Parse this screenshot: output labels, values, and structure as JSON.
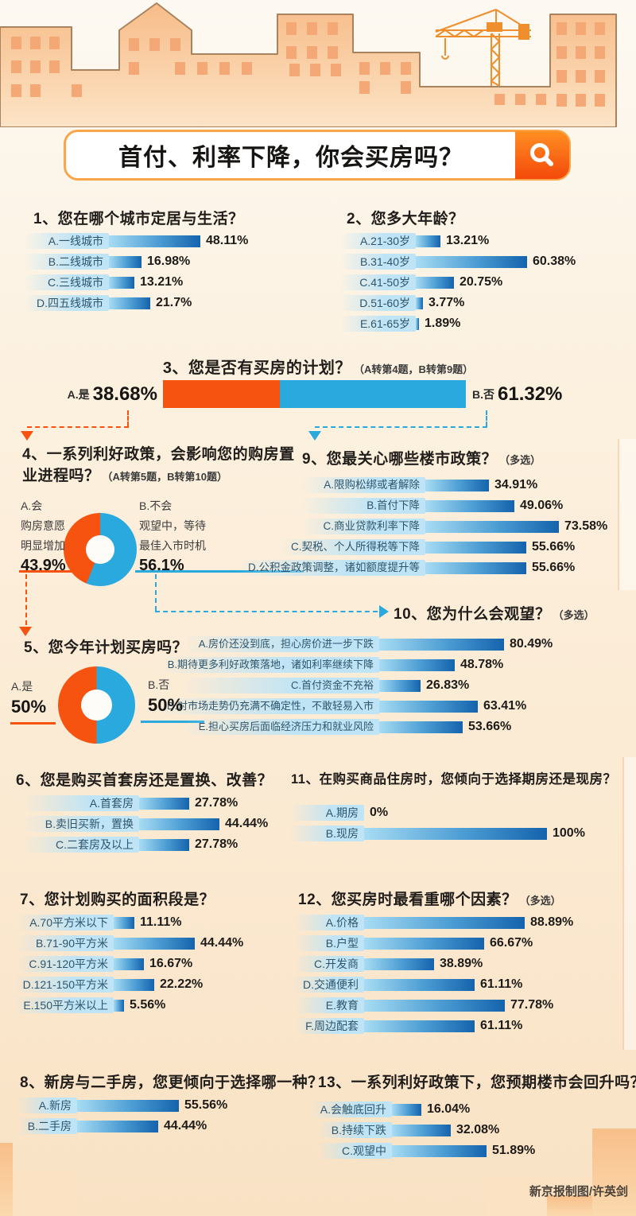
{
  "header": {
    "title": "首付、利率下降，你会买房吗？",
    "search_icon": "magnifier"
  },
  "footer": {
    "credit": "新京报制图/许英剑"
  },
  "colors": {
    "orange": "#f65310",
    "blue": "#29a9de",
    "bar_start": "#a7dcf3",
    "bar_mid": "#4b9cd3",
    "bar_end": "#1463ad",
    "label_bg": "#bee4f6",
    "building": "#f7bc88",
    "building_line": "#aa835e",
    "window": "#f3a876",
    "crane": "#ef8e2d"
  },
  "chart_data": [
    {
      "id": "q1",
      "type": "bar",
      "number": "1",
      "title": "您在哪个城市定居与生活？",
      "note": "",
      "categories": [
        "A.一线城市",
        "B.二线城市",
        "C.三线城市",
        "D.四五线城市"
      ],
      "values": [
        48.11,
        16.98,
        13.21,
        21.7
      ]
    },
    {
      "id": "q2",
      "type": "bar",
      "number": "2",
      "title": "您多大年龄？",
      "note": "",
      "categories": [
        "A.21-30岁",
        "B.31-40岁",
        "C.41-50岁",
        "D.51-60岁",
        "E.61-65岁"
      ],
      "values": [
        13.21,
        60.38,
        20.75,
        3.77,
        1.89
      ]
    },
    {
      "id": "q3",
      "type": "stacked-bar",
      "number": "3",
      "title": "您是否有买房的计划？",
      "note": "（A转第4题，B转第9题）",
      "segments": [
        {
          "label": "A.是",
          "value": 38.68,
          "display": "38.68%",
          "color_key": "orange"
        },
        {
          "label": "B.否",
          "value": 61.32,
          "display": "61.32%",
          "color_key": "blue"
        }
      ]
    },
    {
      "id": "q4",
      "type": "donut",
      "number": "4",
      "title": "一系列利好政策，会影响您的购房置业进程吗？",
      "note": "（A转第5题，B转第10题）",
      "slices": [
        {
          "label": "A.会",
          "desc": [
            "购房意愿",
            "明显增加"
          ],
          "value": 43.9,
          "display": "43.9%",
          "color_key": "orange"
        },
        {
          "label": "B.不会",
          "desc": [
            "观望中，等待",
            "最佳入市时机"
          ],
          "value": 56.1,
          "display": "56.1%",
          "color_key": "blue"
        }
      ]
    },
    {
      "id": "q9",
      "type": "bar",
      "number": "9",
      "title": "您最关心哪些楼市政策？",
      "note": "（多选）",
      "categories": [
        "A.限购松绑或者解除",
        "B.首付下降",
        "C.商业贷款利率下降",
        "C.契税、个人所得税等下降",
        "D.公积金政策调整，诸如额度提升等"
      ],
      "values": [
        34.91,
        49.06,
        73.58,
        55.66,
        55.66
      ]
    },
    {
      "id": "q10",
      "type": "bar",
      "number": "10",
      "title": "您为什么会观望？",
      "note": "（多选）",
      "categories": [
        "A.房价还没到底，担心房价进一步下跌",
        "B.期待更多利好政策落地，诸如利率继续下降",
        "C.首付资金不充裕",
        "D.对市场走势仍充满不确定性，不敢轻易入市",
        "E.担心买房后面临经济压力和就业风险"
      ],
      "values": [
        80.49,
        48.78,
        26.83,
        63.41,
        53.66
      ]
    },
    {
      "id": "q5",
      "type": "donut",
      "number": "5",
      "title": "您今年计划买房吗？",
      "note": "",
      "slices": [
        {
          "label": "A.是",
          "desc": [],
          "value": 50,
          "display": "50%",
          "color_key": "orange"
        },
        {
          "label": "B.否",
          "desc": [],
          "value": 50,
          "display": "50%",
          "color_key": "blue"
        }
      ]
    },
    {
      "id": "q6",
      "type": "bar",
      "number": "6",
      "title": "您是购买首套房还是置换、改善？",
      "note": "",
      "categories": [
        "A.首套房",
        "B.卖旧买新，置换",
        "C.二套房及以上"
      ],
      "values": [
        27.78,
        44.44,
        27.78
      ]
    },
    {
      "id": "q11",
      "type": "bar",
      "number": "11",
      "title": "在购买商品住房时，您倾向于选择期房还是现房？",
      "note": "",
      "categories": [
        "A.期房",
        "B.现房"
      ],
      "values": [
        0,
        100
      ]
    },
    {
      "id": "q7",
      "type": "bar",
      "number": "7",
      "title": "您计划购买的面积段是？",
      "note": "",
      "categories": [
        "A.70平方米以下",
        "B.71-90平方米",
        "C.91-120平方米",
        "D.121-150平方米",
        "E.150平方米以上"
      ],
      "values": [
        11.11,
        44.44,
        16.67,
        22.22,
        5.56
      ]
    },
    {
      "id": "q12",
      "type": "bar",
      "number": "12",
      "title": "您买房时最看重哪个因素？",
      "note": "（多选）",
      "categories": [
        "A.价格",
        "B.户型",
        "C.开发商",
        "D.交通便利",
        "E.教育",
        "F.周边配套"
      ],
      "values": [
        88.89,
        66.67,
        38.89,
        61.11,
        77.78,
        61.11
      ]
    },
    {
      "id": "q8",
      "type": "bar",
      "number": "8",
      "title": "新房与二手房，您更倾向于选择哪一种？",
      "note": "",
      "categories": [
        "A.新房",
        "B.二手房"
      ],
      "values": [
        55.56,
        44.44
      ]
    },
    {
      "id": "q13",
      "type": "bar",
      "number": "13",
      "title": "一系列利好政策下，您预期楼市会回升吗？",
      "note": "",
      "categories": [
        "A.会触底回升",
        "B.持续下跌",
        "C.观望中"
      ],
      "values": [
        16.04,
        32.08,
        51.89
      ]
    }
  ]
}
